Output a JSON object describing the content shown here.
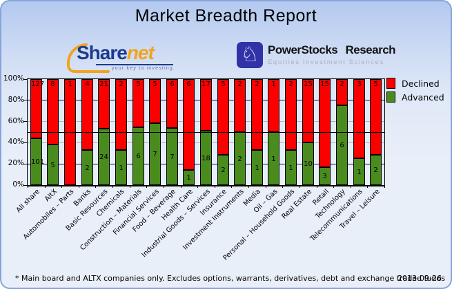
{
  "title": "Market Breadth Report",
  "logos": {
    "sharenet": {
      "name_part1": "Share",
      "name_part2": "net",
      "tagline": "your key to investing",
      "navy_color": "#1d3a8f",
      "orange_color": "#f2a31b"
    },
    "powerstocks": {
      "name": "PowerStocks Research",
      "subtitle": "Equities Investment Sciences",
      "icon": "knight-icon",
      "icon_glyph": "♘",
      "square_color": "#3232a8"
    }
  },
  "chart_data": {
    "type": "bar",
    "stacked": true,
    "stacking": "percent",
    "categories": [
      "All share",
      "AltX",
      "Automobiles – Parts",
      "Banks",
      "Basic Resources",
      "Chemicals",
      "Construction – Materials",
      "Financial Services",
      "Food – Beverage",
      "Health Care",
      "Industrial Goods – Services",
      "Insurance",
      "Investment Instruments",
      "Media",
      "Oil – Gas",
      "Personal – Household Goods",
      "Real Estate",
      "Retail",
      "Technology",
      "Telecommunications",
      "Travel – Leisure"
    ],
    "series": [
      {
        "name": "Declined",
        "color": "#fc0000",
        "values": [
          127,
          8,
          1,
          4,
          21,
          2,
          5,
          5,
          6,
          6,
          17,
          5,
          2,
          2,
          1,
          2,
          15,
          15,
          2,
          3,
          5
        ]
      },
      {
        "name": "Advanced",
        "color": "#4a8b1e",
        "values": [
          101,
          5,
          0,
          2,
          24,
          1,
          6,
          7,
          7,
          1,
          18,
          2,
          2,
          1,
          1,
          1,
          10,
          3,
          6,
          1,
          2
        ]
      }
    ],
    "ylim": [
      0,
      100
    ],
    "y_ticks": [
      {
        "label": "100%",
        "value": 100
      },
      {
        "label": "80%",
        "value": 80
      },
      {
        "label": "60%",
        "value": 60
      },
      {
        "label": "40%",
        "value": 40
      },
      {
        "label": "20%",
        "value": 20
      },
      {
        "label": "0%",
        "value": 0
      }
    ],
    "gridlines": [
      {
        "level": 80,
        "color": "#000080",
        "on_top": false
      },
      {
        "level": 60,
        "color": "#b3b3b3",
        "on_top": false
      },
      {
        "level": 50,
        "color": "#000000",
        "on_top": true
      },
      {
        "level": 40,
        "color": "#b3b3b3",
        "on_top": false
      },
      {
        "level": 20,
        "color": "#000080",
        "on_top": false
      }
    ],
    "legend_position": "right-top",
    "grid": true
  },
  "footer": {
    "disclaimer": "* Main board and ALTX companies only. Excludes options, warrants, derivatives, debt and exchange traded funds",
    "date": "2013-09-26"
  }
}
